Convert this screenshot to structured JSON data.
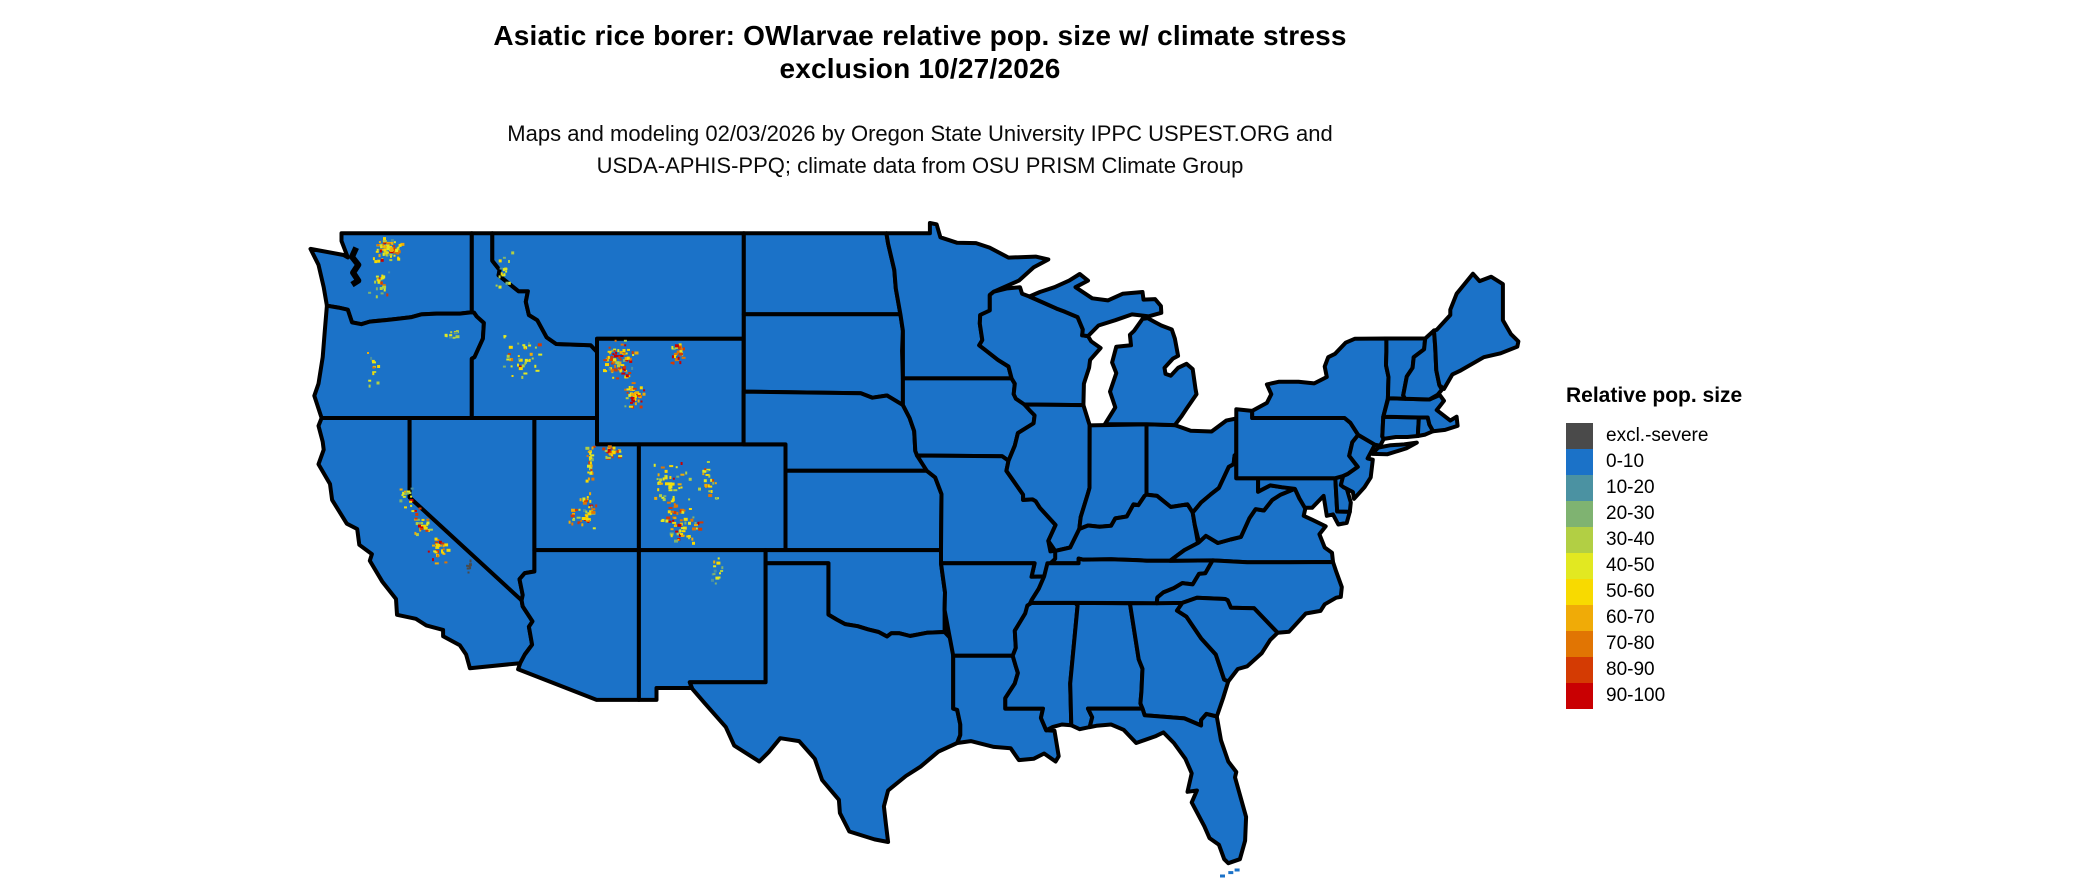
{
  "header": {
    "title_line1": "Asiatic rice borer: OWlarvae relative pop. size w/ climate stress",
    "title_line2": "exclusion 10/27/2026",
    "subtitle_line1": "Maps and modeling 02/03/2026 by Oregon State University IPPC USPEST.ORG and",
    "subtitle_line2": "USDA-APHIS-PPQ; climate data from OSU PRISM Climate Group"
  },
  "legend": {
    "title": "Relative pop. size",
    "items": [
      {
        "label": "excl.-severe",
        "color": "#4a4a4a"
      },
      {
        "label": "0-10",
        "color": "#1b72c8"
      },
      {
        "label": "10-20",
        "color": "#4b92a2"
      },
      {
        "label": "20-30",
        "color": "#7fb371"
      },
      {
        "label": "30-40",
        "color": "#b2cf44"
      },
      {
        "label": "40-50",
        "color": "#e2e821"
      },
      {
        "label": "50-60",
        "color": "#f8da00"
      },
      {
        "label": "60-70",
        "color": "#f0ab07"
      },
      {
        "label": "70-80",
        "color": "#e17503"
      },
      {
        "label": "80-90",
        "color": "#d43b03"
      },
      {
        "label": "90-100",
        "color": "#c90002"
      }
    ]
  },
  "map": {
    "fill_color": "#1b72c8",
    "border_color": "#000000",
    "background_color": "#ffffff",
    "hotspots": [
      {
        "name": "north-cascades-wa",
        "lon": [
          -121.9,
          -120.2
        ],
        "lat": [
          47.9,
          48.9
        ],
        "count": 70,
        "intensity": "medium"
      },
      {
        "name": "south-cascades-wa",
        "lon": [
          -122.0,
          -121.0
        ],
        "lat": [
          46.4,
          47.7
        ],
        "count": 22,
        "intensity": "medium"
      },
      {
        "name": "blue-mountains-or",
        "lon": [
          -118.4,
          -117.7
        ],
        "lat": [
          44.9,
          45.5
        ],
        "count": 10,
        "intensity": "low"
      },
      {
        "name": "oregon-cascades",
        "lon": [
          -122.1,
          -121.5
        ],
        "lat": [
          43.1,
          44.7
        ],
        "count": 12,
        "intensity": "low"
      },
      {
        "name": "bitterroot-id-mt",
        "lon": [
          -116.3,
          -114.6
        ],
        "lat": [
          46.2,
          48.5
        ],
        "count": 18,
        "intensity": "low"
      },
      {
        "name": "sawtooth-central-id",
        "lon": [
          -115.9,
          -113.6
        ],
        "lat": [
          43.5,
          45.2
        ],
        "count": 40,
        "intensity": "low"
      },
      {
        "name": "sierra-nevada-north-ca",
        "lon": [
          -120.6,
          -119.8
        ],
        "lat": [
          38.6,
          39.5
        ],
        "count": 16,
        "intensity": "medium"
      },
      {
        "name": "sierra-nevada-central-ca",
        "lon": [
          -120.0,
          -119.0
        ],
        "lat": [
          37.5,
          38.7
        ],
        "count": 28,
        "intensity": "high"
      },
      {
        "name": "sierra-nevada-south-ca",
        "lon": [
          -119.2,
          -118.2
        ],
        "lat": [
          36.4,
          37.6
        ],
        "count": 28,
        "intensity": "high"
      },
      {
        "name": "death-valley-excl-ca",
        "lon": [
          -117.4,
          -117.1
        ],
        "lat": [
          36.1,
          36.7
        ],
        "count": 7,
        "intensity": "gray"
      },
      {
        "name": "yellowstone-absaroka-wy",
        "lon": [
          -111.0,
          -109.2
        ],
        "lat": [
          43.4,
          45.1
        ],
        "count": 80,
        "intensity": "high"
      },
      {
        "name": "wind-river-wy",
        "lon": [
          -109.9,
          -108.8
        ],
        "lat": [
          42.4,
          43.5
        ],
        "count": 40,
        "intensity": "high"
      },
      {
        "name": "bighorn-wy",
        "lon": [
          -107.6,
          -106.8
        ],
        "lat": [
          44.0,
          44.9
        ],
        "count": 28,
        "intensity": "high"
      },
      {
        "name": "uinta-ut",
        "lon": [
          -110.9,
          -109.9
        ],
        "lat": [
          40.5,
          41.0
        ],
        "count": 30,
        "intensity": "high"
      },
      {
        "name": "wasatch-ut",
        "lon": [
          -111.7,
          -111.1
        ],
        "lat": [
          39.3,
          41.4
        ],
        "count": 26,
        "intensity": "medium"
      },
      {
        "name": "central-utah-plateaus",
        "lon": [
          -112.5,
          -111.0
        ],
        "lat": [
          37.6,
          39.3
        ],
        "count": 48,
        "intensity": "high"
      },
      {
        "name": "west-colorado-rockies",
        "lon": [
          -108.9,
          -106.5
        ],
        "lat": [
          38.6,
          40.5
        ],
        "count": 45,
        "intensity": "medium"
      },
      {
        "name": "san-juan-sawatch-co",
        "lon": [
          -108.1,
          -106.1
        ],
        "lat": [
          37.2,
          38.9
        ],
        "count": 65,
        "intensity": "high"
      },
      {
        "name": "front-range-co",
        "lon": [
          -106.3,
          -105.3
        ],
        "lat": [
          38.6,
          40.6
        ],
        "count": 25,
        "intensity": "medium"
      },
      {
        "name": "sangre-de-cristo-nm",
        "lon": [
          -105.7,
          -105.1
        ],
        "lat": [
          35.6,
          36.9
        ],
        "count": 14,
        "intensity": "low"
      }
    ]
  }
}
